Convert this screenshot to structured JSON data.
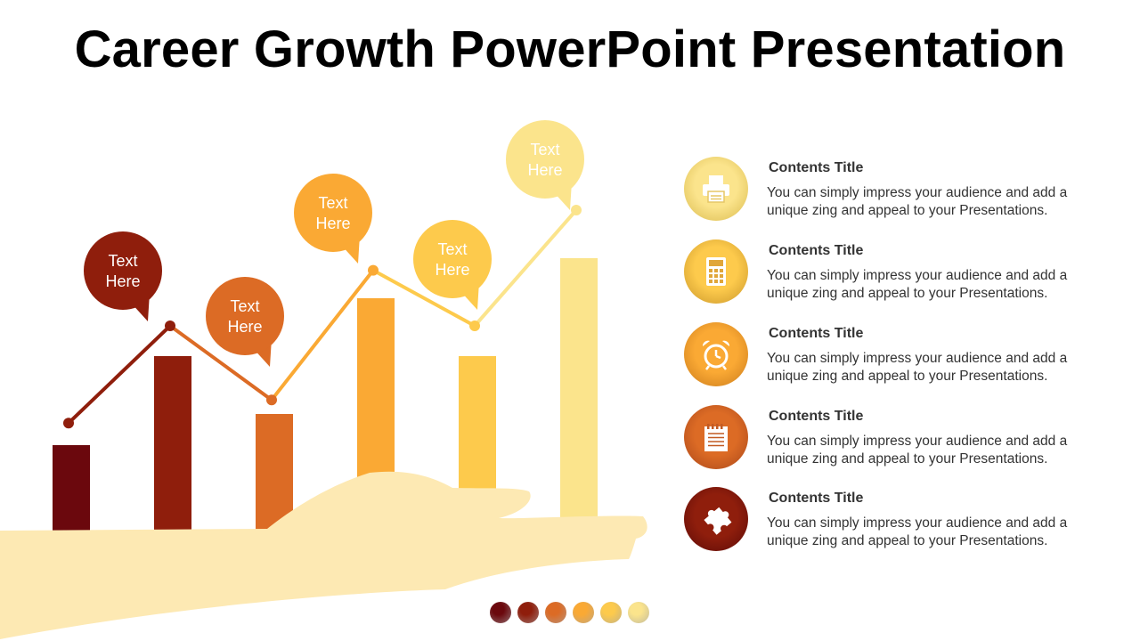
{
  "title": "Career Growth PowerPoint Presentation",
  "chart_data": {
    "type": "bar",
    "series": [
      {
        "values": [
          20,
          40,
          27,
          53,
          40,
          62
        ]
      }
    ],
    "line_values": [
      24,
      45,
      29,
      57,
      45,
      70
    ],
    "bubbles": [
      {
        "line1": "Text",
        "line2": "Here"
      },
      {
        "line1": "Text",
        "line2": "Here"
      },
      {
        "line1": "Text",
        "line2": "Here"
      },
      {
        "line1": "Text",
        "line2": "Here"
      },
      {
        "line1": "Text",
        "line2": "Here"
      }
    ],
    "colors": [
      "#6b080d",
      "#8f1e0c",
      "#dc6b25",
      "#faa934",
      "#fdca4c",
      "#fbe48c"
    ],
    "bubble_colors": [
      "#8f1e0c",
      "#dc6b25",
      "#faa934",
      "#fdca4c",
      "#fbe48c"
    ]
  },
  "items": [
    {
      "icon": "printer-icon",
      "title": "Contents Title",
      "desc": "You can simply impress your audience and add a unique zing and appeal to your Presentations.",
      "grad": [
        "#fbe48c",
        "#d9b94c"
      ]
    },
    {
      "icon": "calculator-icon",
      "title": "Contents Title",
      "desc": "You can simply impress your audience and add a unique zing and appeal to your Presentations.",
      "grad": [
        "#fdca4c",
        "#c8952a"
      ]
    },
    {
      "icon": "alarm-clock-icon",
      "title": "Contents Title",
      "desc": "You can simply impress your audience and add a unique zing and appeal to your Presentations.",
      "grad": [
        "#faa934",
        "#c97a1c"
      ]
    },
    {
      "icon": "notepad-icon",
      "title": "Contents Title",
      "desc": "You can simply impress your audience and add a unique zing and appeal to your Presentations.",
      "grad": [
        "#dc6b25",
        "#a8461a"
      ]
    },
    {
      "icon": "puzzle-icon",
      "title": "Contents Title",
      "desc": "You can simply impress your audience and add a unique zing and appeal to your Presentations.",
      "grad": [
        "#8f1e0c",
        "#5a0a08"
      ]
    }
  ],
  "dot_colors": [
    "#6b080d",
    "#8f1e0c",
    "#dc6b25",
    "#faa934",
    "#fdca4c",
    "#fbe48c"
  ]
}
